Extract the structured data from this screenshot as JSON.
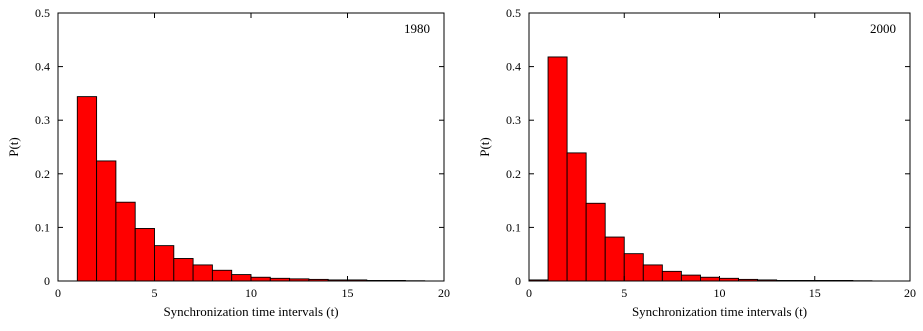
{
  "chart_data": [
    {
      "type": "bar",
      "panel_label": "1980",
      "xlabel": "Synchronization time intervals (t)",
      "ylabel": "P(t)",
      "xlim": [
        0,
        20
      ],
      "ylim": [
        0,
        0.5
      ],
      "x_ticks": [
        0,
        5,
        10,
        15,
        20
      ],
      "y_ticks": [
        0,
        0.1,
        0.2,
        0.3,
        0.4,
        0.5
      ],
      "bin_width": 1,
      "bin_starts": [
        1,
        2,
        3,
        4,
        5,
        6,
        7,
        8,
        9,
        10,
        11,
        12,
        13,
        14,
        15,
        16,
        17,
        18
      ],
      "values": [
        0.344,
        0.224,
        0.147,
        0.098,
        0.066,
        0.042,
        0.03,
        0.02,
        0.012,
        0.007,
        0.005,
        0.004,
        0.003,
        0.002,
        0.002,
        0.001,
        0.001,
        0.0005
      ],
      "bar_color": "#ff0000",
      "edge_color": "#000000",
      "grid": false
    },
    {
      "type": "bar",
      "panel_label": "2000",
      "xlabel": "Synchronization time intervals (t)",
      "ylabel": "P(t)",
      "xlim": [
        0,
        20
      ],
      "ylim": [
        0,
        0.5
      ],
      "x_ticks": [
        0,
        5,
        10,
        15,
        20
      ],
      "y_ticks": [
        0,
        0.1,
        0.2,
        0.3,
        0.4,
        0.5
      ],
      "bin_width": 1,
      "bin_starts": [
        0,
        1,
        2,
        3,
        4,
        5,
        6,
        7,
        8,
        9,
        10,
        11,
        12,
        13,
        14,
        15,
        16,
        17
      ],
      "values": [
        0.002,
        0.418,
        0.239,
        0.145,
        0.082,
        0.051,
        0.03,
        0.018,
        0.011,
        0.007,
        0.005,
        0.003,
        0.002,
        0.001,
        0.001,
        0.001,
        0.001,
        0.0005
      ],
      "bar_color": "#ff0000",
      "edge_color": "#000000",
      "grid": false
    }
  ]
}
